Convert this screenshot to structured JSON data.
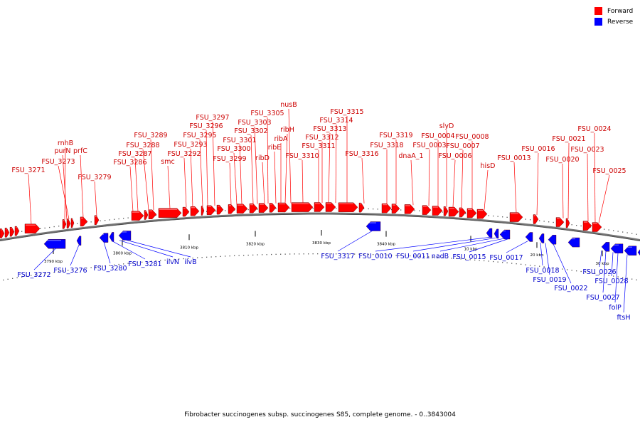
{
  "legend": {
    "forward_label": "Forward",
    "reverse_label": "Reverse",
    "forward_color": "#ff0000",
    "reverse_color": "#0000ff"
  },
  "caption": "Fibrobacter succinogenes subsp. succinogenes S85, complete genome. - 0..3843004",
  "colors": {
    "forward_label": "#cc0000",
    "reverse_label": "#0000cc",
    "backbone": "#777777"
  },
  "ticks": [
    "3790 kbp",
    "3800 kbp",
    "3810 kbp",
    "3820 kbp",
    "3830 kbp",
    "3840 kbp",
    "10 kbp",
    "20 kbp",
    "30 kbp"
  ],
  "forward_labels": [
    "FSU_3271",
    "rnhB",
    "purN",
    "FSU_3273",
    "prfC",
    "FSU_3279",
    "FSU_3286",
    "FSU_3287",
    "FSU_3288",
    "FSU_3289",
    "smc",
    "FSU_3292",
    "FSU_3293",
    "FSU_3295",
    "FSU_3296",
    "FSU_3297",
    "FSU_3299",
    "FSU_3300",
    "FSU_3301",
    "FSU_3302",
    "FSU_3303",
    "FSU_3305",
    "ribD",
    "ribE",
    "ribA",
    "ribH",
    "nusB",
    "FSU_3310",
    "FSU_3311",
    "FSU_3312",
    "FSU_3313",
    "FSU_3314",
    "FSU_3315",
    "FSU_3316",
    "FSU_3318",
    "FSU_3319",
    "dnaA_1",
    "FSU_0003",
    "FSU_0004",
    "slyD",
    "FSU_0006",
    "FSU_0007",
    "FSU_0008",
    "hisD",
    "FSU_0013",
    "FSU_0016",
    "FSU_0020",
    "FSU_0021",
    "FSU_0023",
    "FSU_0024",
    "FSU_0025"
  ],
  "reverse_labels": [
    "FSU_3272",
    "FSU_3276",
    "FSU_3280",
    "FSU_3281",
    "ilvN",
    "ilvB",
    "FSU_3317",
    "FSU_0010",
    "FSU_0011",
    "nadB",
    "FSU_0015",
    "FSU_0017",
    "FSU_0018",
    "FSU_0019",
    "FSU_0022",
    "FSU_0026",
    "FSU_0027",
    "FSU_0028",
    "folP",
    "ftsH"
  ]
}
